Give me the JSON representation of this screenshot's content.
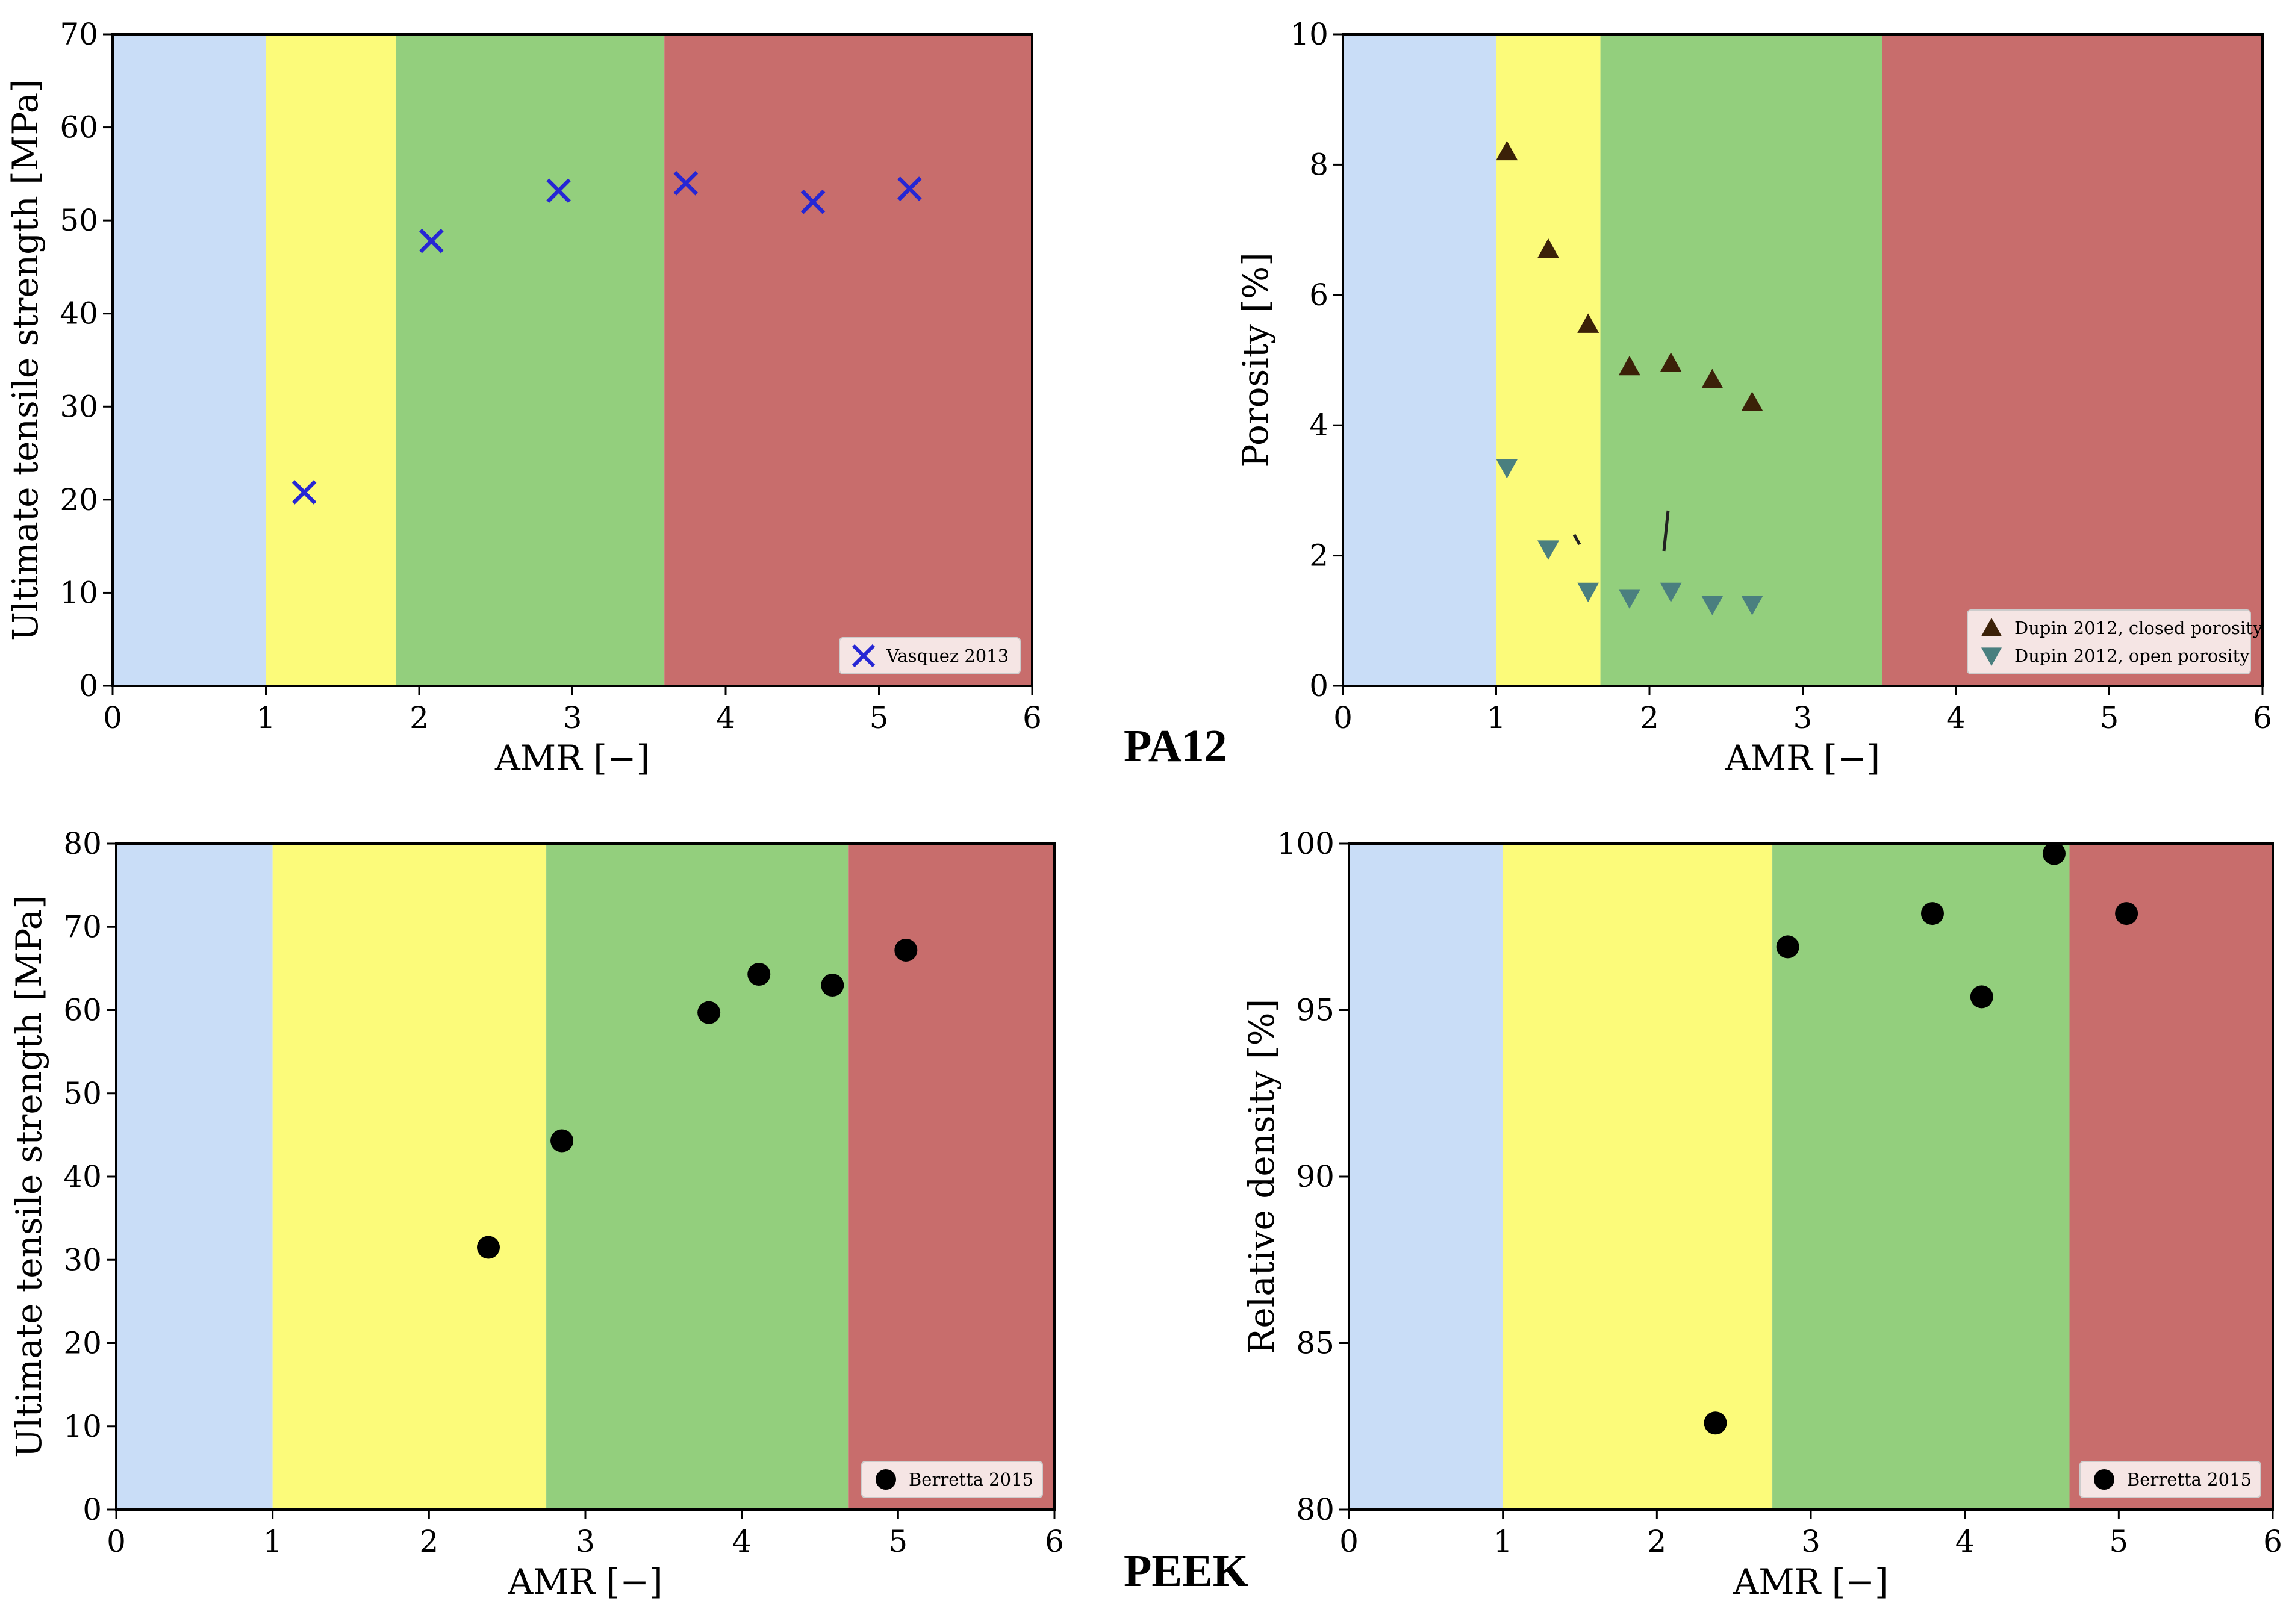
{
  "materials": {
    "top": "PA12",
    "bottom": "PEEK"
  },
  "colors": {
    "band_blue": "#c9ddf7",
    "band_yellow": "#fcfb7a",
    "band_green": "#93cf7d",
    "band_red": "#c86d6c",
    "marker_blue": "#2626d4",
    "marker_brown": "#3b2108",
    "marker_teal": "#4a7f7f",
    "marker_black": "#000000"
  },
  "chart_data": [
    {
      "id": "pa12-uts",
      "type": "scatter",
      "title": "",
      "xlabel": "AMR [−]",
      "ylabel": "Ultimate tensile strength [MPa]",
      "xlim": [
        0,
        6
      ],
      "ylim": [
        0,
        70
      ],
      "xticks": [
        0,
        1,
        2,
        3,
        4,
        5,
        6
      ],
      "yticks": [
        0,
        10,
        20,
        30,
        40,
        50,
        60,
        70
      ],
      "bands": [
        {
          "from": 0,
          "to": 1.0,
          "color": "band_blue"
        },
        {
          "from": 1.0,
          "to": 1.85,
          "color": "band_yellow"
        },
        {
          "from": 1.85,
          "to": 3.6,
          "color": "band_green"
        },
        {
          "from": 3.6,
          "to": 6,
          "color": "band_red"
        }
      ],
      "legend_position": "bottom-right",
      "series": [
        {
          "name": "Vasquez 2013",
          "marker": "x",
          "color": "marker_blue",
          "x": [
            1.25,
            2.08,
            2.91,
            3.74,
            4.57,
            5.2
          ],
          "y": [
            20.8,
            47.8,
            53.2,
            54.0,
            52.0,
            53.4
          ]
        }
      ]
    },
    {
      "id": "pa12-porosity",
      "type": "scatter",
      "title": "",
      "xlabel": "AMR [−]",
      "ylabel": "Porosity [%]",
      "xlim": [
        0,
        6
      ],
      "ylim": [
        0,
        10
      ],
      "xticks": [
        0,
        1,
        2,
        3,
        4,
        5,
        6
      ],
      "yticks": [
        0,
        2,
        4,
        6,
        8,
        10
      ],
      "bands": [
        {
          "from": 0,
          "to": 1.0,
          "color": "band_blue"
        },
        {
          "from": 1.0,
          "to": 1.68,
          "color": "band_yellow"
        },
        {
          "from": 1.68,
          "to": 3.52,
          "color": "band_green"
        },
        {
          "from": 3.52,
          "to": 6,
          "color": "band_red"
        }
      ],
      "legend_position": "bottom-right",
      "series": [
        {
          "name": "Dupin 2012, closed porosity",
          "marker": "triangle-up",
          "color": "marker_brown",
          "x": [
            1.07,
            1.34,
            1.6,
            1.87,
            2.14,
            2.41,
            2.67
          ],
          "y": [
            8.2,
            6.7,
            5.55,
            4.9,
            4.95,
            4.7,
            4.35
          ]
        },
        {
          "name": "Dupin 2012, open porosity",
          "marker": "triangle-down",
          "color": "marker_teal",
          "x": [
            1.07,
            1.34,
            1.6,
            1.87,
            2.14,
            2.41,
            2.67
          ],
          "y": [
            3.35,
            2.1,
            1.45,
            1.35,
            1.45,
            1.25,
            1.25
          ]
        }
      ]
    },
    {
      "id": "peek-uts",
      "type": "scatter",
      "title": "",
      "xlabel": "AMR [−]",
      "ylabel": "Ultimate tensile strength [MPa]",
      "xlim": [
        0,
        6
      ],
      "ylim": [
        0,
        80
      ],
      "xticks": [
        0,
        1,
        2,
        3,
        4,
        5,
        6
      ],
      "yticks": [
        0,
        10,
        20,
        30,
        40,
        50,
        60,
        70,
        80
      ],
      "bands": [
        {
          "from": 0,
          "to": 1.0,
          "color": "band_blue"
        },
        {
          "from": 1.0,
          "to": 2.75,
          "color": "band_yellow"
        },
        {
          "from": 2.75,
          "to": 4.68,
          "color": "band_green"
        },
        {
          "from": 4.68,
          "to": 6,
          "color": "band_red"
        }
      ],
      "legend_position": "bottom-right",
      "series": [
        {
          "name": "Berretta 2015",
          "marker": "circle",
          "color": "marker_black",
          "x": [
            2.38,
            2.85,
            3.79,
            4.11,
            4.58,
            5.05
          ],
          "y": [
            31.5,
            44.3,
            59.7,
            64.3,
            63.0,
            67.2
          ]
        }
      ]
    },
    {
      "id": "peek-density",
      "type": "scatter",
      "title": "",
      "xlabel": "AMR [−]",
      "ylabel": "Relative density [%]",
      "xlim": [
        0,
        6
      ],
      "ylim": [
        80,
        100
      ],
      "xticks": [
        0,
        1,
        2,
        3,
        4,
        5,
        6
      ],
      "yticks": [
        80,
        85,
        90,
        95,
        100
      ],
      "bands": [
        {
          "from": 0,
          "to": 1.0,
          "color": "band_blue"
        },
        {
          "from": 1.0,
          "to": 2.75,
          "color": "band_yellow"
        },
        {
          "from": 2.75,
          "to": 4.68,
          "color": "band_green"
        },
        {
          "from": 4.68,
          "to": 6,
          "color": "band_red"
        }
      ],
      "legend_position": "bottom-right",
      "series": [
        {
          "name": "Berretta 2015",
          "marker": "circle",
          "color": "marker_black",
          "x": [
            2.38,
            2.85,
            3.79,
            4.11,
            4.58,
            5.05
          ],
          "y": [
            82.6,
            96.9,
            97.9,
            95.4,
            99.7,
            97.9
          ]
        }
      ]
    }
  ]
}
